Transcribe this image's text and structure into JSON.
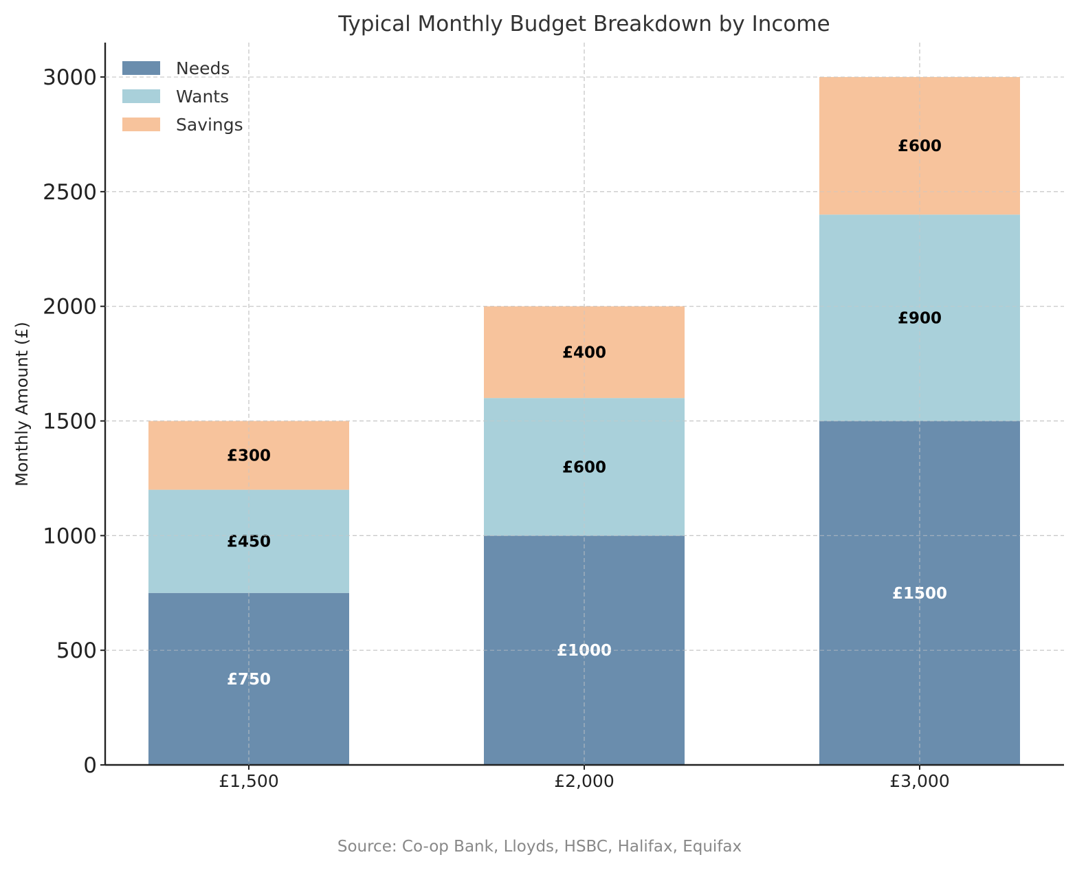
{
  "chart_data": {
    "type": "bar",
    "stacked": true,
    "title": "Typical Monthly Budget Breakdown by Income",
    "xlabel": "",
    "ylabel": "Monthly Amount (£)",
    "categories": [
      "£1,500",
      "£2,000",
      "£3,000"
    ],
    "series": [
      {
        "name": "Needs",
        "color": "#6a8dad",
        "label_color": "#ffffff",
        "values": [
          750,
          1000,
          1500
        ],
        "labels": [
          "£750",
          "£1000",
          "£1500"
        ]
      },
      {
        "name": "Wants",
        "color": "#a9d0da",
        "label_color": "#000000",
        "values": [
          450,
          600,
          900
        ],
        "labels": [
          "£450",
          "£600",
          "£900"
        ]
      },
      {
        "name": "Savings",
        "color": "#f7c39c",
        "label_color": "#000000",
        "values": [
          300,
          400,
          600
        ],
        "labels": [
          "£300",
          "£400",
          "£600"
        ]
      }
    ],
    "ylim": [
      0,
      3150
    ],
    "yticks": [
      0,
      500,
      1000,
      1500,
      2000,
      2500,
      3000
    ],
    "grid": true,
    "legend_position": "top-left",
    "source": "Source: Co-op Bank, Lloyds, HSBC, Halifax, Equifax"
  }
}
